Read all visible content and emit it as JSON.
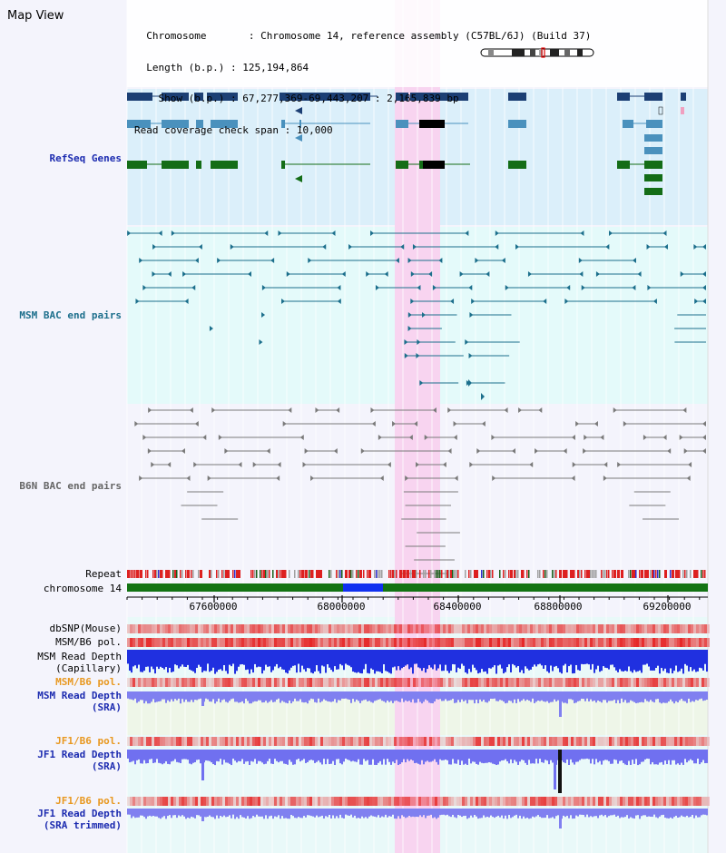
{
  "page": {
    "title": "Map View"
  },
  "info": {
    "chromosome_key": "Chromosome",
    "chromosome_val": "Chromosome 14, reference assembly (C57BL/6J) (Build 37)",
    "length_key": "Length (b.p.)",
    "length_val": "125,194,864",
    "show_key": "Show (b.p.)",
    "show_val": "67,277,369-69,443,207 : 2,165,839 bp",
    "span_key": "Read coverage check span",
    "span_val": "10,000"
  },
  "tracks": {
    "refseq": "RefSeq Genes",
    "msm_bac": "MSM BAC end pairs",
    "b6n_bac": "B6N BAC end pairs",
    "repeat": "Repeat",
    "chromosome": "chromosome 14",
    "dbsnp": "dbSNP(Mouse)",
    "msm_b6_pol": "MSM/B6 pol.",
    "msm_read_depth_cap_1": "MSM Read Depth",
    "msm_read_depth_cap_2": "(Capillary)",
    "msm_b6_pol_2": "MSM/B6 pol.",
    "msm_read_depth_sra_1": "MSM Read Depth",
    "msm_read_depth_sra_2": "(SRA)",
    "jf1_b6_pol": "JF1/B6 pol.",
    "jf1_read_depth_sra_1": "JF1 Read Depth",
    "jf1_read_depth_sra_2": "(SRA)",
    "jf1_b6_pol_2": "JF1/B6 pol.",
    "jf1_read_depth_trim_1": "JF1 Read Depth",
    "jf1_read_depth_trim_2": "(SRA trimmed)"
  },
  "axis": {
    "ticks": [
      "67600000",
      "68000000",
      "68400000",
      "68800000",
      "69200000"
    ]
  },
  "colors": {
    "refseq_bg": "#dbeffa",
    "msm_bg": "#e4fafa",
    "b6n_bg": "#f4f4fc",
    "highlight": "#f8d4f0",
    "refseq_dark": "#1c3f74",
    "refseq_mid": "#4a91bd",
    "refseq_green": "#146d17",
    "msm_pair": "#1c6f8c",
    "b6n_pair": "#7a7a7a",
    "chrom_bar": "#137313",
    "label_blue": "#1d2cb0",
    "label_orange": "#e89820",
    "label_teal": "#1d6f8c"
  }
}
